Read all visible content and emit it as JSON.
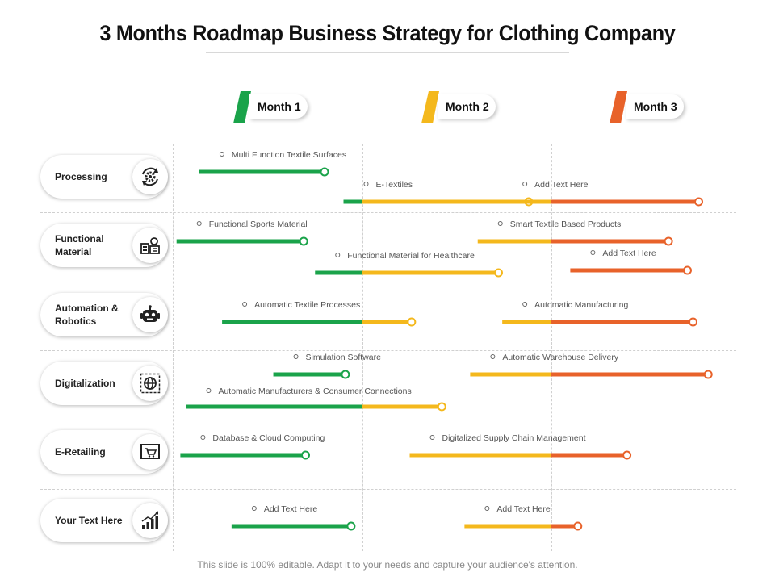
{
  "title": "3 Months Roadmap Business Strategy for Clothing Company",
  "footer": "This slide is 100% editable. Adapt it to your needs and capture your audience's attention.",
  "months": [
    {
      "label": "Month 1",
      "color": "#1aa34a"
    },
    {
      "label": "Month 2",
      "color": "#f4b81c"
    },
    {
      "label": "Month 3",
      "color": "#e8622a"
    }
  ],
  "colors": {
    "month1": "#1aa34a",
    "month2": "#f4b81c",
    "month3": "#e8622a"
  },
  "categories": [
    {
      "label": "Processing",
      "icon": "gear-cycle-icon"
    },
    {
      "label": "Functional Material",
      "icon": "factory-icon"
    },
    {
      "label": "Automation & Robotics",
      "icon": "robot-icon"
    },
    {
      "label": "Digitalization",
      "icon": "digital-globe-icon"
    },
    {
      "label": "E-Retailing",
      "icon": "shopping-cart-icon"
    },
    {
      "label": "Your Text Here",
      "icon": "bar-chart-icon"
    }
  ],
  "tasks": [
    {
      "category": 0,
      "label": "Multi Function Textile Surfaces",
      "start": 0.14,
      "end": 0.8
    },
    {
      "category": 0,
      "label": "E-Textiles",
      "start": 0.9,
      "end": 1.88
    },
    {
      "category": 0,
      "label": "Add Text Here",
      "start": 1.74,
      "end": 2.78
    },
    {
      "category": 1,
      "label": "Functional Sports Material",
      "start": 0.02,
      "end": 0.69
    },
    {
      "category": 1,
      "label": "Functional Material for Healthcare",
      "start": 0.75,
      "end": 1.72
    },
    {
      "category": 1,
      "label": "Smart Textile Based Products",
      "start": 1.61,
      "end": 2.62
    },
    {
      "category": 1,
      "label": "Add Text Here",
      "start": 2.1,
      "end": 2.72
    },
    {
      "category": 2,
      "label": "Automatic Textile Processes",
      "start": 0.26,
      "end": 1.26
    },
    {
      "category": 2,
      "label": "Automatic Manufacturing",
      "start": 1.74,
      "end": 2.75
    },
    {
      "category": 3,
      "label": "Simulation Software",
      "start": 0.53,
      "end": 0.91
    },
    {
      "category": 3,
      "label": "Automatic Warehouse Delivery",
      "start": 1.57,
      "end": 2.83
    },
    {
      "category": 3,
      "label": "Automatic Manufacturers & Consumer Connections",
      "start": 0.07,
      "end": 1.42
    },
    {
      "category": 4,
      "label": "Database & Cloud Computing",
      "start": 0.04,
      "end": 0.7
    },
    {
      "category": 4,
      "label": "Digitalized Supply Chain Management",
      "start": 1.25,
      "end": 2.4
    },
    {
      "category": 5,
      "label": "Add Text Here",
      "start": 0.31,
      "end": 0.94
    },
    {
      "category": 5,
      "label": "Add Text Here",
      "start": 1.54,
      "end": 2.14
    }
  ]
}
